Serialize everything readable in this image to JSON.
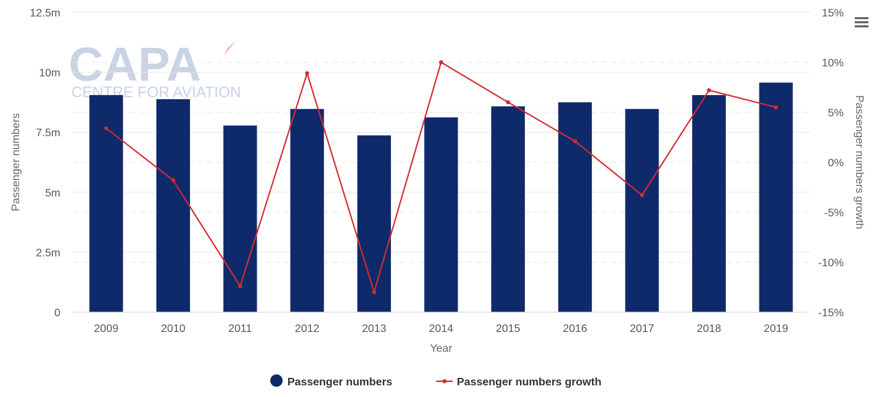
{
  "watermark": {
    "brand": "CAPA",
    "tagline": "CENTRE FOR AVIATION"
  },
  "menu": {
    "icon": "hamburger-menu-icon"
  },
  "chart_data": {
    "type": "bar",
    "categories": [
      "2009",
      "2010",
      "2011",
      "2012",
      "2013",
      "2014",
      "2015",
      "2016",
      "2017",
      "2018",
      "2019"
    ],
    "series": [
      {
        "name": "Passenger numbers",
        "type": "bar",
        "axis": "left",
        "color": "#0f2a6b",
        "values": [
          9.05,
          8.88,
          7.78,
          8.47,
          7.37,
          8.12,
          8.58,
          8.75,
          8.47,
          9.05,
          9.57
        ]
      },
      {
        "name": "Passenger numbers growth",
        "type": "line",
        "axis": "right",
        "color": "#d42a30",
        "values": [
          3.4,
          -1.8,
          -12.4,
          8.9,
          -13.0,
          10.0,
          6.0,
          2.1,
          -3.3,
          7.2,
          5.5
        ]
      }
    ],
    "xlabel": "Year",
    "ylabel": "Passenger numbers",
    "ylabel_right": "Passenger numbers growth",
    "ylim": [
      0,
      12.5
    ],
    "ylim_right": [
      -15,
      15
    ],
    "yticks": [
      {
        "value": 0,
        "label": "0"
      },
      {
        "value": 2.5,
        "label": "2.5m"
      },
      {
        "value": 5,
        "label": "5m"
      },
      {
        "value": 7.5,
        "label": "7.5m"
      },
      {
        "value": 10,
        "label": "10m"
      },
      {
        "value": 12.5,
        "label": "12.5m"
      }
    ],
    "yticks_right": [
      {
        "value": -15,
        "label": "-15%"
      },
      {
        "value": -10,
        "label": "-10%"
      },
      {
        "value": -5,
        "label": "-5%"
      },
      {
        "value": 0,
        "label": "0%"
      },
      {
        "value": 5,
        "label": "5%"
      },
      {
        "value": 10,
        "label": "10%"
      },
      {
        "value": 15,
        "label": "15%"
      }
    ],
    "grid": true,
    "legend_position": "bottom-center"
  }
}
